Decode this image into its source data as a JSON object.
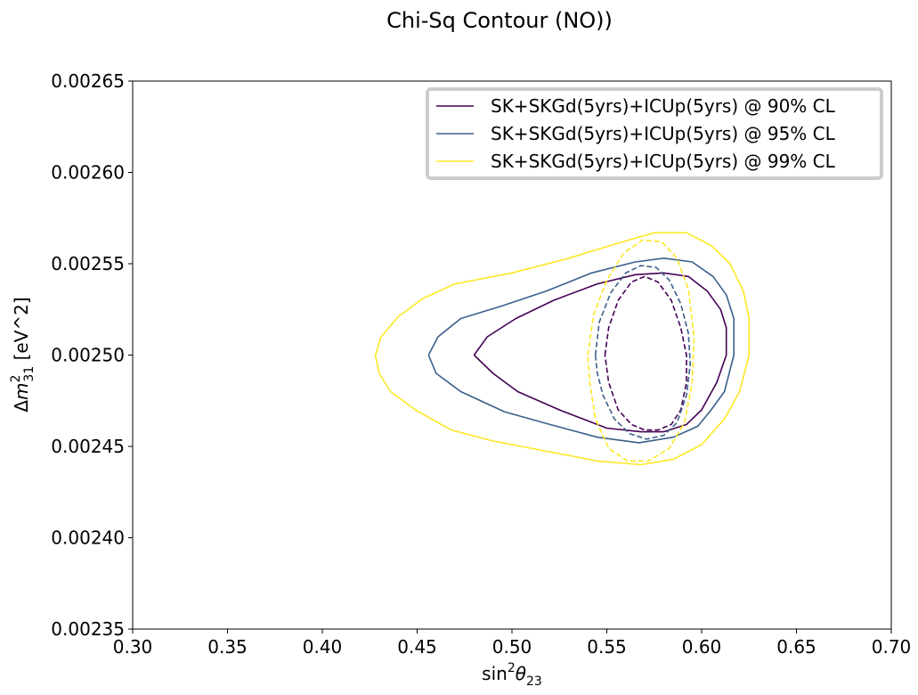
{
  "chart_data": {
    "type": "line",
    "title": "Chi-Sq Contour (NO))",
    "xlabel": {
      "base": "sin",
      "sup": "2",
      "sym": "θ",
      "sub": "23"
    },
    "ylabel": {
      "pre": "Δ",
      "sym": "m",
      "sup": "2",
      "sub": "31",
      "post": " [eV^2]"
    },
    "xlim": [
      0.3,
      0.7
    ],
    "ylim": [
      0.00235,
      0.00265
    ],
    "xticks": [
      0.3,
      0.35,
      0.4,
      0.45,
      0.5,
      0.55,
      0.6,
      0.65,
      0.7
    ],
    "xtick_labels": [
      "0.30",
      "0.35",
      "0.40",
      "0.45",
      "0.50",
      "0.55",
      "0.60",
      "0.65",
      "0.70"
    ],
    "yticks": [
      0.00235,
      0.0024,
      0.00245,
      0.0025,
      0.00255,
      0.0026,
      0.00265
    ],
    "ytick_labels": [
      "0.00235",
      "0.00240",
      "0.00245",
      "0.00250",
      "0.00255",
      "0.00260",
      "0.00265"
    ],
    "grid": false,
    "legend_position": "top-right",
    "series": [
      {
        "name": "SK+SKGd(5yrs)+ICUp(5yrs) @ 90% CL",
        "color": "#440154",
        "style": "solid",
        "x": [
          0.48,
          0.487,
          0.502,
          0.522,
          0.545,
          0.565,
          0.58,
          0.593,
          0.603,
          0.61,
          0.613,
          0.613,
          0.608,
          0.6,
          0.592,
          0.58,
          0.568,
          0.55,
          0.525,
          0.503,
          0.49,
          0.48
        ],
        "y": [
          0.0025,
          0.00251,
          0.00252,
          0.00253,
          0.002539,
          0.002544,
          0.002545,
          0.002543,
          0.002535,
          0.002525,
          0.002515,
          0.0025,
          0.002485,
          0.00247,
          0.002462,
          0.002458,
          0.002458,
          0.00246,
          0.00247,
          0.00248,
          0.00249,
          0.0025
        ]
      },
      {
        "name": "SK+SKGd(5yrs)+ICUp(5yrs) @ 95% CL",
        "color": "#3b5f8a",
        "style": "solid",
        "x": [
          0.456,
          0.461,
          0.473,
          0.495,
          0.518,
          0.542,
          0.565,
          0.58,
          0.595,
          0.606,
          0.613,
          0.617,
          0.617,
          0.612,
          0.605,
          0.598,
          0.585,
          0.567,
          0.545,
          0.52,
          0.496,
          0.473,
          0.46,
          0.456
        ],
        "y": [
          0.0025,
          0.00251,
          0.00252,
          0.002527,
          0.002535,
          0.002545,
          0.002551,
          0.002553,
          0.002551,
          0.002543,
          0.002533,
          0.00252,
          0.0025,
          0.00248,
          0.00247,
          0.002461,
          0.002455,
          0.002452,
          0.002455,
          0.002462,
          0.002469,
          0.00248,
          0.00249,
          0.0025
        ]
      },
      {
        "name": "SK+SKGd(5yrs)+ICUp(5yrs) @ 99% CL",
        "color": "#fde725",
        "style": "solid",
        "x": [
          0.428,
          0.431,
          0.44,
          0.453,
          0.47,
          0.5,
          0.53,
          0.555,
          0.575,
          0.592,
          0.605,
          0.615,
          0.622,
          0.625,
          0.625,
          0.62,
          0.612,
          0.6,
          0.585,
          0.568,
          0.545,
          0.515,
          0.49,
          0.468,
          0.449,
          0.436,
          0.43,
          0.428
        ],
        "y": [
          0.0025,
          0.00251,
          0.002521,
          0.002531,
          0.002539,
          0.002545,
          0.002553,
          0.002561,
          0.002567,
          0.002567,
          0.00256,
          0.00255,
          0.002535,
          0.00252,
          0.0025,
          0.00248,
          0.002465,
          0.002451,
          0.002443,
          0.00244,
          0.002442,
          0.002448,
          0.002453,
          0.002459,
          0.00247,
          0.00248,
          0.00249,
          0.0025
        ]
      }
    ],
    "dashed_contours": [
      {
        "color": "#440154",
        "style": "dashed",
        "x": [
          0.549,
          0.551,
          0.556,
          0.563,
          0.57,
          0.577,
          0.584,
          0.589,
          0.592,
          0.592,
          0.589,
          0.584,
          0.577,
          0.57,
          0.563,
          0.556,
          0.551,
          0.549
        ],
        "y": [
          0.0025,
          0.002515,
          0.00253,
          0.00254,
          0.002543,
          0.00254,
          0.00253,
          0.002515,
          0.0025,
          0.002485,
          0.00247,
          0.002462,
          0.002459,
          0.002459,
          0.002462,
          0.00247,
          0.002485,
          0.0025
        ]
      },
      {
        "color": "#3b5f8a",
        "style": "dashed",
        "x": [
          0.544,
          0.546,
          0.552,
          0.56,
          0.568,
          0.576,
          0.583,
          0.589,
          0.593,
          0.594,
          0.592,
          0.587,
          0.58,
          0.571,
          0.562,
          0.554,
          0.548,
          0.545,
          0.544
        ],
        "y": [
          0.0025,
          0.002518,
          0.002534,
          0.002545,
          0.002549,
          0.002548,
          0.002541,
          0.002528,
          0.002512,
          0.002495,
          0.002478,
          0.002463,
          0.002456,
          0.002454,
          0.002457,
          0.002465,
          0.002478,
          0.00249,
          0.0025
        ]
      },
      {
        "color": "#fde725",
        "style": "dashed",
        "x": [
          0.54,
          0.543,
          0.55,
          0.559,
          0.569,
          0.579,
          0.587,
          0.593,
          0.596,
          0.595,
          0.591,
          0.583,
          0.572,
          0.561,
          0.551,
          0.544,
          0.541,
          0.54
        ],
        "y": [
          0.0025,
          0.002522,
          0.002541,
          0.002556,
          0.002563,
          0.002562,
          0.002553,
          0.002536,
          0.00251,
          0.002485,
          0.002463,
          0.002449,
          0.002442,
          0.002442,
          0.002449,
          0.002465,
          0.002485,
          0.0025
        ]
      }
    ]
  }
}
